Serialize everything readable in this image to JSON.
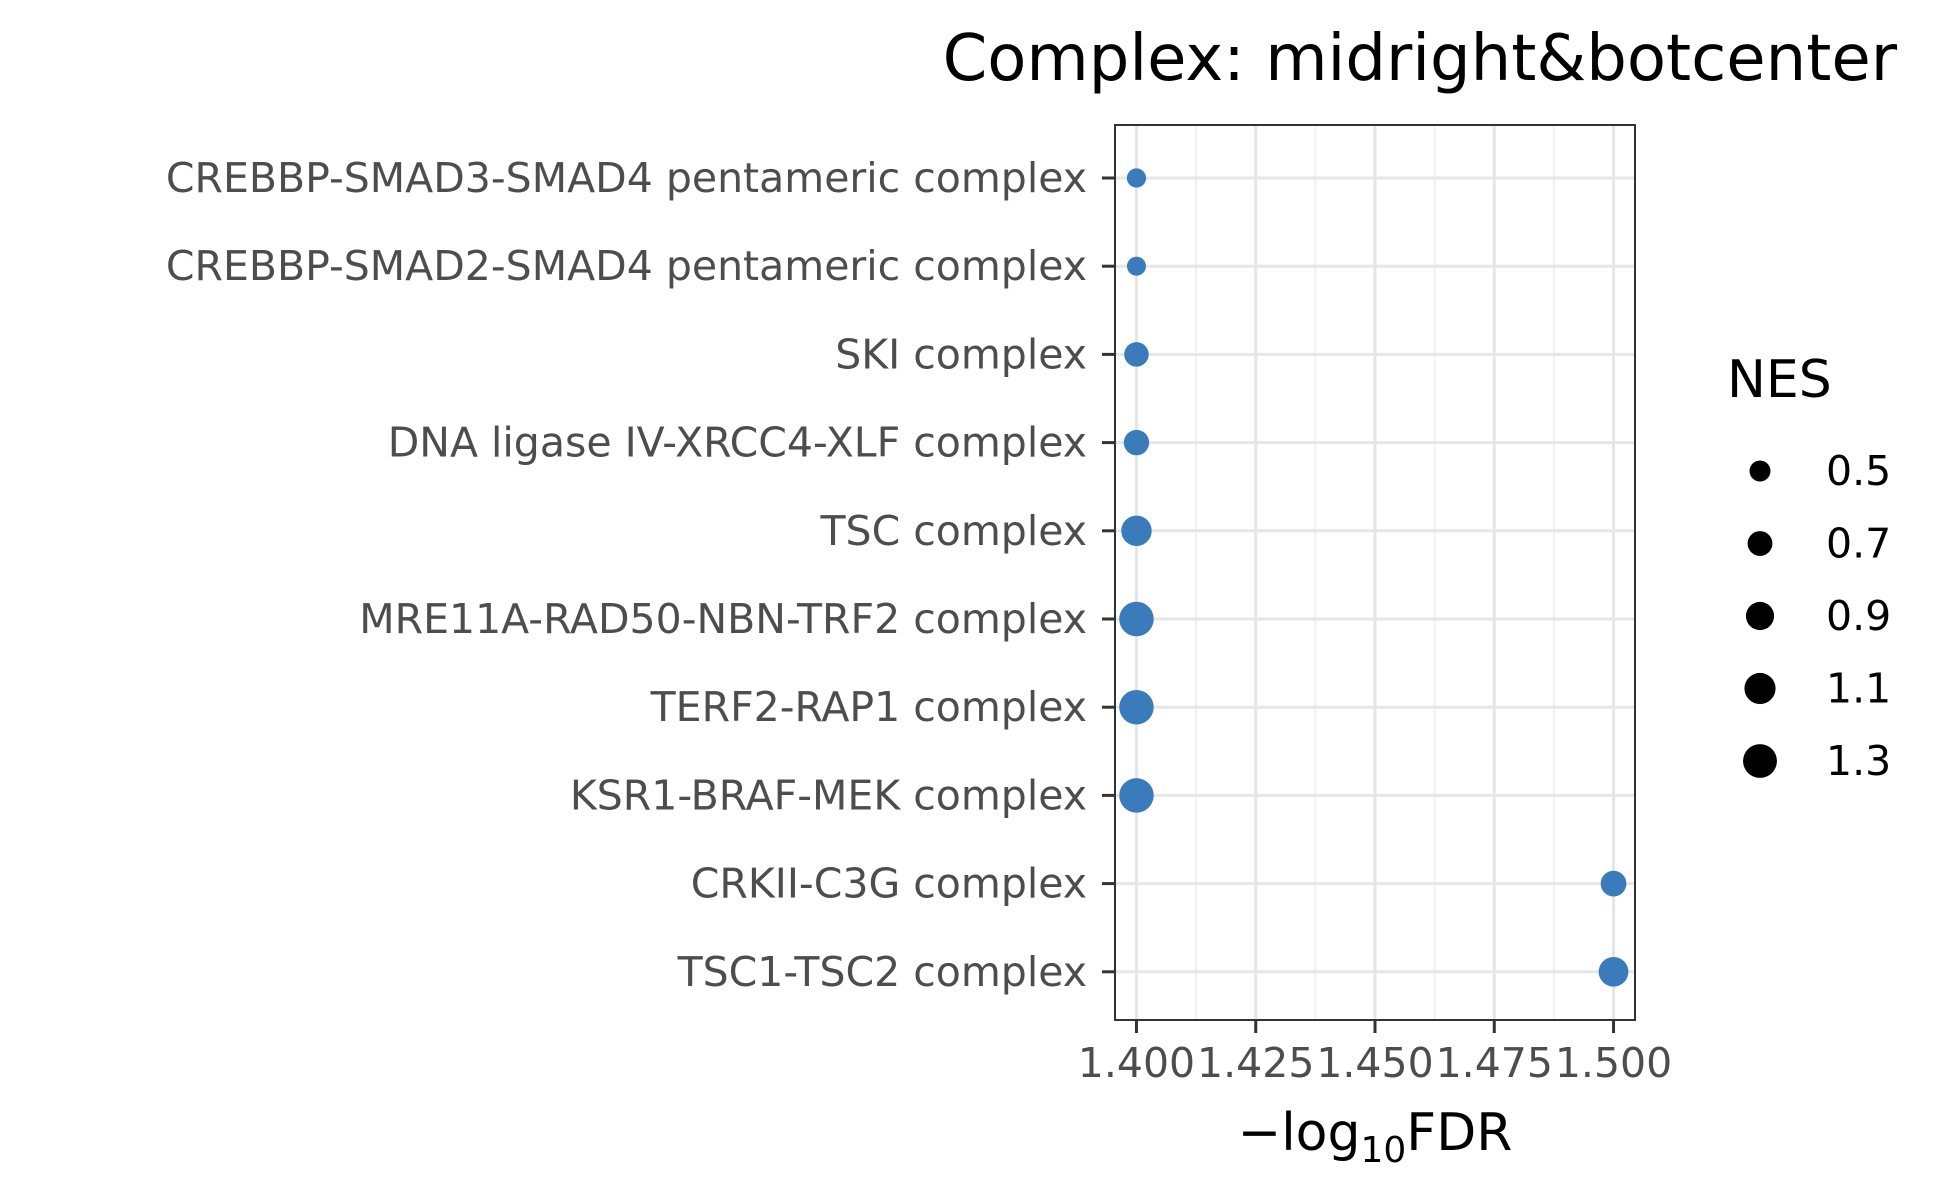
{
  "chart_data": {
    "type": "scatter",
    "title": "Complex: midright&botcenter",
    "xlabel_prefix": "−log",
    "xlabel_sub": "10",
    "xlabel_suffix": "FDR",
    "ylabel": "",
    "xlim": [
      1.3955,
      1.5045
    ],
    "x_ticks": [
      1.4,
      1.425,
      1.45,
      1.475,
      1.5
    ],
    "x_tick_labels": [
      "1.400",
      "1.425",
      "1.450",
      "1.475",
      "1.500"
    ],
    "categories": [
      "CREBBP-SMAD3-SMAD4 pentameric complex",
      "CREBBP-SMAD2-SMAD4 pentameric complex",
      "SKI complex",
      "DNA ligase IV-XRCC4-XLF complex",
      "TSC complex",
      "MRE11A-RAD50-NBN-TRF2 complex",
      "TERF2-RAP1 complex",
      "KSR1-BRAF-MEK complex",
      "CRKII-C3G complex",
      "TSC1-TSC2 complex"
    ],
    "points": [
      {
        "y": "CREBBP-SMAD3-SMAD4 pentameric complex",
        "x": 1.4,
        "nes": 0.42
      },
      {
        "y": "CREBBP-SMAD2-SMAD4 pentameric complex",
        "x": 1.4,
        "nes": 0.41
      },
      {
        "y": "SKI complex",
        "x": 1.4,
        "nes": 0.68
      },
      {
        "y": "DNA ligase IV-XRCC4-XLF complex",
        "x": 1.4,
        "nes": 0.73
      },
      {
        "y": "TSC complex",
        "x": 1.4,
        "nes": 1.05
      },
      {
        "y": "MRE11A-RAD50-NBN-TRF2 complex",
        "x": 1.4,
        "nes": 1.35
      },
      {
        "y": "TERF2-RAP1 complex",
        "x": 1.4,
        "nes": 1.35
      },
      {
        "y": "KSR1-BRAF-MEK complex",
        "x": 1.4,
        "nes": 1.35
      },
      {
        "y": "CRKII-C3G complex",
        "x": 1.5,
        "nes": 0.75
      },
      {
        "y": "TSC1-TSC2 complex",
        "x": 1.5,
        "nes": 1.0
      }
    ],
    "point_color": "#3a7bbb",
    "grid": true,
    "legend": {
      "title": "NES",
      "position": "right",
      "values": [
        0.5,
        0.7,
        0.9,
        1.1,
        1.3
      ],
      "labels": [
        "0.5",
        "0.7",
        "0.9",
        "1.1",
        "1.3"
      ],
      "color": "#000000"
    }
  }
}
